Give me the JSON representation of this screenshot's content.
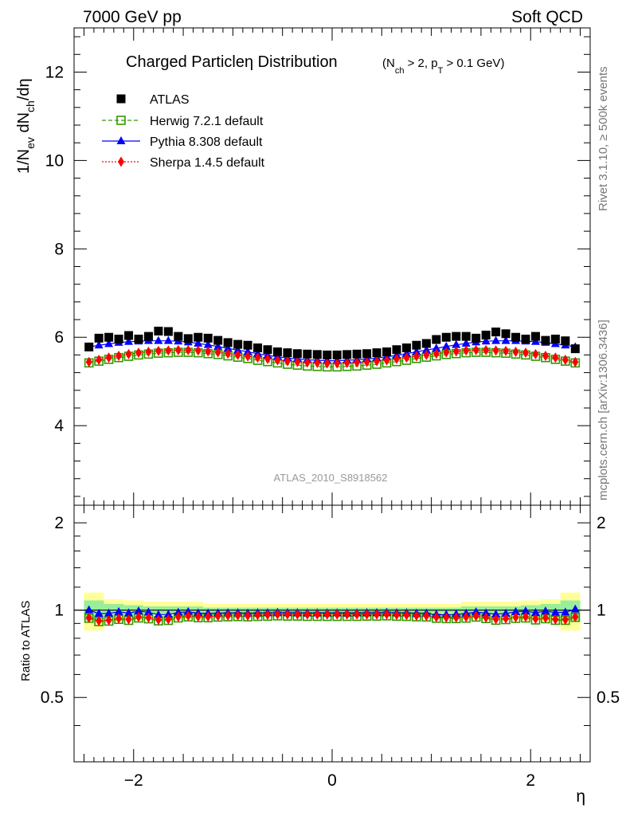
{
  "header": {
    "energy_label": "7000 GeV pp",
    "category_label": "Soft QCD"
  },
  "side_labels": {
    "rivet": "Rivet 3.1.10, ≥ 500k events",
    "mcplots": "mcplots.cern.ch [arXiv:1306.3436]"
  },
  "chart_data": {
    "type": "scatter",
    "title": "Charged Particleη Distribution",
    "subtitle": "(N_ch > 2, p_T > 0.1 GeV)",
    "xlabel": "η",
    "ylabel": "1/N_ev dN_ch/dη",
    "ratio_ylabel": "Ratio to ATLAS",
    "watermark": "ATLAS_2010_S8918562",
    "xlim": [
      -2.6,
      2.6
    ],
    "ylim": [
      2.2,
      13.0
    ],
    "ratio_ylim": [
      0.3,
      2.3
    ],
    "x_ticks": [
      -2,
      0,
      2
    ],
    "x_tick_labels": [
      "−2",
      "0",
      "2"
    ],
    "y_ticks": [
      4,
      6,
      8,
      10,
      12
    ],
    "y_tick_labels": [
      "4",
      "6",
      "8",
      "10",
      "12"
    ],
    "ratio_ticks": [
      0.5,
      1,
      2
    ],
    "ratio_tick_labels": [
      "0.5",
      "1",
      "2"
    ],
    "x": [
      -2.45,
      -2.35,
      -2.25,
      -2.15,
      -2.05,
      -1.95,
      -1.85,
      -1.75,
      -1.65,
      -1.55,
      -1.45,
      -1.35,
      -1.25,
      -1.15,
      -1.05,
      -0.95,
      -0.85,
      -0.75,
      -0.65,
      -0.55,
      -0.45,
      -0.35,
      -0.25,
      -0.15,
      -0.05,
      0.05,
      0.15,
      0.25,
      0.35,
      0.45,
      0.55,
      0.65,
      0.75,
      0.85,
      0.95,
      1.05,
      1.15,
      1.25,
      1.35,
      1.45,
      1.55,
      1.65,
      1.75,
      1.85,
      1.95,
      2.05,
      2.15,
      2.25,
      2.35,
      2.45
    ],
    "series": [
      {
        "name": "ATLAS",
        "color": "#000000",
        "marker": "square",
        "values": [
          5.78,
          5.98,
          6.0,
          5.96,
          6.04,
          5.96,
          6.02,
          6.14,
          6.13,
          6.02,
          5.97,
          6.0,
          5.98,
          5.93,
          5.88,
          5.84,
          5.82,
          5.76,
          5.72,
          5.67,
          5.65,
          5.63,
          5.62,
          5.61,
          5.6,
          5.6,
          5.61,
          5.62,
          5.63,
          5.65,
          5.67,
          5.72,
          5.76,
          5.82,
          5.86,
          5.95,
          6.0,
          6.02,
          6.02,
          5.98,
          6.05,
          6.12,
          6.08,
          6.0,
          5.96,
          6.02,
          5.93,
          5.96,
          5.92,
          5.74
        ]
      },
      {
        "name": "Herwig 7.2.1 default",
        "color": "#339900",
        "marker": "open-square",
        "line": "dashed",
        "values": [
          5.42,
          5.46,
          5.5,
          5.54,
          5.57,
          5.6,
          5.62,
          5.64,
          5.65,
          5.66,
          5.66,
          5.65,
          5.63,
          5.61,
          5.58,
          5.55,
          5.52,
          5.48,
          5.45,
          5.42,
          5.39,
          5.37,
          5.35,
          5.34,
          5.33,
          5.33,
          5.34,
          5.35,
          5.37,
          5.39,
          5.42,
          5.45,
          5.48,
          5.52,
          5.55,
          5.58,
          5.61,
          5.63,
          5.65,
          5.66,
          5.66,
          5.65,
          5.64,
          5.62,
          5.6,
          5.57,
          5.54,
          5.5,
          5.46,
          5.42
        ]
      },
      {
        "name": "Pythia 8.308 default",
        "color": "#0000ff",
        "marker": "triangle",
        "line": "solid",
        "values": [
          5.78,
          5.82,
          5.85,
          5.88,
          5.9,
          5.91,
          5.92,
          5.92,
          5.92,
          5.91,
          5.89,
          5.86,
          5.83,
          5.79,
          5.75,
          5.71,
          5.67,
          5.63,
          5.59,
          5.56,
          5.53,
          5.51,
          5.49,
          5.48,
          5.47,
          5.47,
          5.48,
          5.49,
          5.51,
          5.53,
          5.56,
          5.59,
          5.63,
          5.67,
          5.71,
          5.75,
          5.79,
          5.83,
          5.86,
          5.89,
          5.91,
          5.92,
          5.92,
          5.92,
          5.91,
          5.9,
          5.88,
          5.85,
          5.82,
          5.78
        ]
      },
      {
        "name": "Sherpa 1.4.5 default",
        "color": "#ff0000",
        "marker": "diamond",
        "line": "dotted",
        "values": [
          5.44,
          5.49,
          5.54,
          5.58,
          5.62,
          5.65,
          5.67,
          5.69,
          5.7,
          5.71,
          5.71,
          5.7,
          5.68,
          5.66,
          5.63,
          5.6,
          5.57,
          5.54,
          5.51,
          5.48,
          5.46,
          5.44,
          5.43,
          5.42,
          5.41,
          5.41,
          5.42,
          5.43,
          5.44,
          5.46,
          5.48,
          5.51,
          5.54,
          5.57,
          5.6,
          5.63,
          5.66,
          5.68,
          5.7,
          5.71,
          5.71,
          5.7,
          5.69,
          5.67,
          5.65,
          5.62,
          5.58,
          5.54,
          5.49,
          5.44
        ]
      }
    ],
    "uncertainty_bands": {
      "inner_color": "#99ee99",
      "outer_color": "#ffff99",
      "segments": [
        {
          "x0": -2.5,
          "x1": -2.3,
          "inner": 0.08,
          "outer": 0.15
        },
        {
          "x0": -2.3,
          "x1": -2.1,
          "inner": 0.05,
          "outer": 0.09
        },
        {
          "x0": -2.1,
          "x1": -1.9,
          "inner": 0.04,
          "outer": 0.08
        },
        {
          "x0": -1.9,
          "x1": -1.3,
          "inner": 0.03,
          "outer": 0.07
        },
        {
          "x0": -1.3,
          "x1": 1.3,
          "inner": 0.02,
          "outer": 0.05
        },
        {
          "x0": 1.3,
          "x1": 1.9,
          "inner": 0.03,
          "outer": 0.07
        },
        {
          "x0": 1.9,
          "x1": 2.1,
          "inner": 0.04,
          "outer": 0.08
        },
        {
          "x0": 2.1,
          "x1": 2.3,
          "inner": 0.05,
          "outer": 0.09
        },
        {
          "x0": 2.3,
          "x1": 2.5,
          "inner": 0.08,
          "outer": 0.15
        }
      ]
    }
  }
}
